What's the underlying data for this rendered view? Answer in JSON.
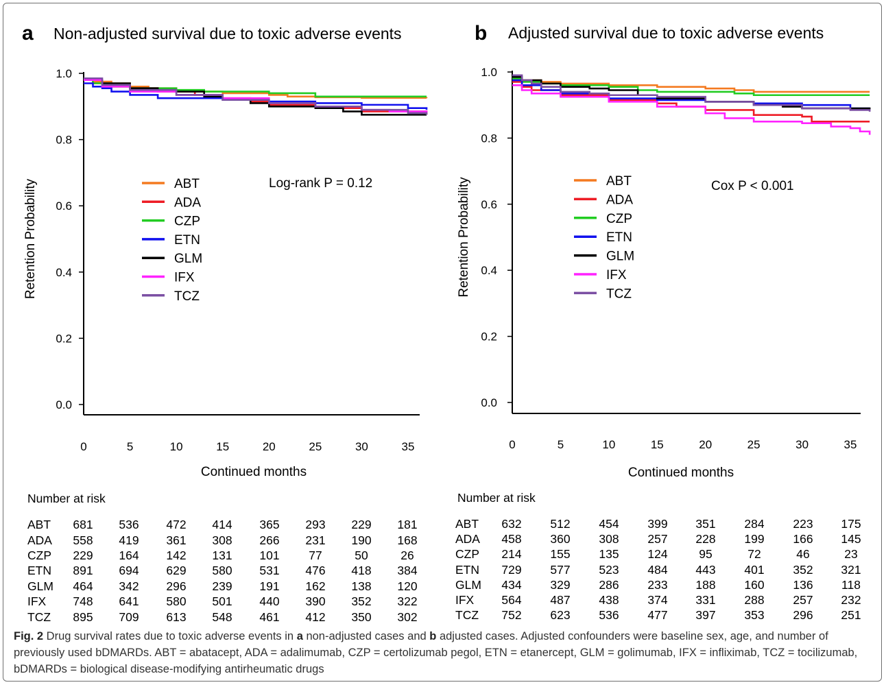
{
  "chart_data": [
    {
      "type": "line",
      "panel_letter": "a",
      "title": "Non-adjusted survival due to toxic adverse events",
      "xlabel": "Continued months",
      "ylabel": "Retention Probability",
      "xlim": [
        0,
        37
      ],
      "ylim": [
        0,
        1.0
      ],
      "x_ticks": [
        0,
        5,
        10,
        15,
        20,
        25,
        30,
        35
      ],
      "y_ticks": [
        "0.0",
        "0.2",
        "0.4",
        "0.6",
        "0.8",
        "1.0"
      ],
      "annotation": "Log-rank P = 0.12",
      "legend": "center-left",
      "series": [
        {
          "name": "ABT",
          "color": "#F47A20",
          "x": [
            0,
            1,
            3,
            5,
            7,
            10,
            15,
            20,
            22,
            25,
            30,
            37
          ],
          "y": [
            0.98,
            0.975,
            0.97,
            0.96,
            0.955,
            0.945,
            0.94,
            0.935,
            0.93,
            0.928,
            0.926,
            0.925
          ]
        },
        {
          "name": "ADA",
          "color": "#EE1C25",
          "x": [
            0,
            1,
            3,
            5,
            8,
            12,
            15,
            18,
            20,
            25,
            30,
            37
          ],
          "y": [
            0.98,
            0.97,
            0.96,
            0.955,
            0.945,
            0.935,
            0.925,
            0.915,
            0.905,
            0.895,
            0.885,
            0.875
          ]
        },
        {
          "name": "CZP",
          "color": "#22CC22",
          "x": [
            0,
            1,
            3,
            5,
            10,
            13,
            20,
            23,
            25,
            30,
            37
          ],
          "y": [
            0.98,
            0.97,
            0.96,
            0.955,
            0.95,
            0.945,
            0.94,
            0.94,
            0.93,
            0.93,
            0.93
          ]
        },
        {
          "name": "ETN",
          "color": "#1111EE",
          "x": [
            0,
            1,
            2,
            3,
            5,
            8,
            10,
            15,
            20,
            25,
            30,
            35,
            37
          ],
          "y": [
            0.97,
            0.96,
            0.955,
            0.945,
            0.935,
            0.925,
            0.925,
            0.92,
            0.915,
            0.91,
            0.905,
            0.895,
            0.89
          ]
        },
        {
          "name": "GLM",
          "color": "#000000",
          "x": [
            0,
            2,
            5,
            8,
            10,
            13,
            15,
            18,
            20,
            25,
            28,
            30,
            37
          ],
          "y": [
            0.98,
            0.97,
            0.955,
            0.95,
            0.945,
            0.93,
            0.92,
            0.91,
            0.9,
            0.895,
            0.885,
            0.875,
            0.875
          ]
        },
        {
          "name": "IFX",
          "color": "#FF22FF",
          "x": [
            0,
            2,
            5,
            10,
            15,
            20,
            25,
            30,
            33,
            37
          ],
          "y": [
            0.98,
            0.96,
            0.945,
            0.935,
            0.925,
            0.91,
            0.9,
            0.89,
            0.885,
            0.88
          ]
        },
        {
          "name": "TCZ",
          "color": "#7B4FA3",
          "x": [
            0,
            2,
            5,
            10,
            15,
            20,
            25,
            30,
            35,
            37
          ],
          "y": [
            0.985,
            0.965,
            0.95,
            0.935,
            0.92,
            0.91,
            0.9,
            0.89,
            0.88,
            0.875
          ]
        }
      ]
    },
    {
      "type": "line",
      "panel_letter": "b",
      "title": "Adjusted survival due to toxic adverse events",
      "xlabel": "Continued months",
      "ylabel": "Retention Probability",
      "xlim": [
        0,
        37
      ],
      "ylim": [
        0,
        1.0
      ],
      "x_ticks": [
        0,
        5,
        10,
        15,
        20,
        25,
        30,
        35
      ],
      "y_ticks": [
        "0.0",
        "0.2",
        "0.4",
        "0.6",
        "0.8",
        "1.0"
      ],
      "annotation": "Cox P < 0.001",
      "legend": "center-left",
      "series": [
        {
          "name": "ABT",
          "color": "#F47A20",
          "x": [
            0,
            1,
            3,
            5,
            10,
            15,
            20,
            23,
            25,
            30,
            37
          ],
          "y": [
            0.985,
            0.975,
            0.97,
            0.965,
            0.96,
            0.955,
            0.95,
            0.945,
            0.94,
            0.94,
            0.94
          ]
        },
        {
          "name": "ADA",
          "color": "#EE1C25",
          "x": [
            0,
            1,
            2,
            5,
            10,
            15,
            17,
            20,
            25,
            30,
            31,
            35,
            37
          ],
          "y": [
            0.97,
            0.955,
            0.945,
            0.93,
            0.915,
            0.905,
            0.895,
            0.885,
            0.87,
            0.865,
            0.85,
            0.85,
            0.85
          ]
        },
        {
          "name": "CZP",
          "color": "#22CC22",
          "x": [
            0,
            1,
            3,
            5,
            10,
            13,
            15,
            20,
            23,
            25,
            30,
            37
          ],
          "y": [
            0.98,
            0.97,
            0.965,
            0.96,
            0.955,
            0.945,
            0.94,
            0.94,
            0.935,
            0.93,
            0.93,
            0.93
          ]
        },
        {
          "name": "ETN",
          "color": "#1111EE",
          "x": [
            0,
            1,
            3,
            5,
            10,
            15,
            20,
            25,
            30,
            35,
            37
          ],
          "y": [
            0.975,
            0.96,
            0.945,
            0.935,
            0.92,
            0.915,
            0.91,
            0.905,
            0.9,
            0.89,
            0.89
          ]
        },
        {
          "name": "GLM",
          "color": "#000000",
          "x": [
            0,
            1,
            3,
            5,
            8,
            10,
            13,
            15,
            20,
            25,
            28,
            30,
            37
          ],
          "y": [
            0.985,
            0.975,
            0.965,
            0.955,
            0.95,
            0.945,
            0.93,
            0.92,
            0.91,
            0.9,
            0.895,
            0.89,
            0.885
          ]
        },
        {
          "name": "IFX",
          "color": "#FF22FF",
          "x": [
            0,
            1,
            2,
            5,
            10,
            15,
            20,
            22,
            25,
            30,
            33,
            35,
            36,
            37
          ],
          "y": [
            0.96,
            0.945,
            0.935,
            0.925,
            0.91,
            0.895,
            0.875,
            0.86,
            0.85,
            0.845,
            0.835,
            0.83,
            0.82,
            0.81
          ]
        },
        {
          "name": "TCZ",
          "color": "#7B4FA3",
          "x": [
            0,
            1,
            2,
            3,
            5,
            8,
            10,
            15,
            20,
            25,
            30,
            35,
            37
          ],
          "y": [
            0.99,
            0.975,
            0.965,
            0.955,
            0.94,
            0.935,
            0.93,
            0.925,
            0.91,
            0.9,
            0.89,
            0.885,
            0.88
          ]
        }
      ]
    }
  ],
  "risk_tables": [
    {
      "title": "Number at risk",
      "rows": [
        {
          "label": "ABT",
          "values": [
            "681",
            "536",
            "472",
            "414",
            "365",
            "293",
            "229",
            "181"
          ]
        },
        {
          "label": "ADA",
          "values": [
            "558",
            "419",
            "361",
            "308",
            "266",
            "231",
            "190",
            "168"
          ]
        },
        {
          "label": "CZP",
          "values": [
            "229",
            "164",
            "142",
            "131",
            "101",
            "77",
            "50",
            "26"
          ]
        },
        {
          "label": "ETN",
          "values": [
            "891",
            "694",
            "629",
            "580",
            "531",
            "476",
            "418",
            "384"
          ]
        },
        {
          "label": "GLM",
          "values": [
            "464",
            "342",
            "296",
            "239",
            "191",
            "162",
            "138",
            "120"
          ]
        },
        {
          "label": "IFX",
          "values": [
            "748",
            "641",
            "580",
            "501",
            "440",
            "390",
            "352",
            "322"
          ]
        },
        {
          "label": "TCZ",
          "values": [
            "895",
            "709",
            "613",
            "548",
            "461",
            "412",
            "350",
            "302"
          ]
        }
      ]
    },
    {
      "title": "Number at risk",
      "rows": [
        {
          "label": "ABT",
          "values": [
            "632",
            "512",
            "454",
            "399",
            "351",
            "284",
            "223",
            "175"
          ]
        },
        {
          "label": "ADA",
          "values": [
            "458",
            "360",
            "308",
            "257",
            "228",
            "199",
            "166",
            "145"
          ]
        },
        {
          "label": "CZP",
          "values": [
            "214",
            "155",
            "135",
            "124",
            "95",
            "72",
            "46",
            "23"
          ]
        },
        {
          "label": "ETN",
          "values": [
            "729",
            "577",
            "523",
            "484",
            "443",
            "401",
            "352",
            "321"
          ]
        },
        {
          "label": "GLM",
          "values": [
            "434",
            "329",
            "286",
            "233",
            "188",
            "160",
            "136",
            "118"
          ]
        },
        {
          "label": "IFX",
          "values": [
            "564",
            "487",
            "438",
            "374",
            "331",
            "288",
            "257",
            "232"
          ]
        },
        {
          "label": "TCZ",
          "values": [
            "752",
            "623",
            "536",
            "477",
            "397",
            "353",
            "296",
            "251"
          ]
        }
      ]
    }
  ],
  "caption": {
    "fig_label": "Fig. 2",
    "part1": " Drug survival rates due to toxic adverse events in ",
    "a": "a",
    "part2": " non-adjusted cases and ",
    "b": "b",
    "part3": " adjusted cases. Adjusted confounders were baseline sex, age, and number of previously used bDMARDs. ABT = abatacept, ADA = adalimumab, CZP = certolizumab pegol, ETN = etanercept, GLM = golimumab, IFX = infliximab, TCZ = tocilizumab, bDMARDs = biological disease-modifying antirheumatic drugs"
  }
}
